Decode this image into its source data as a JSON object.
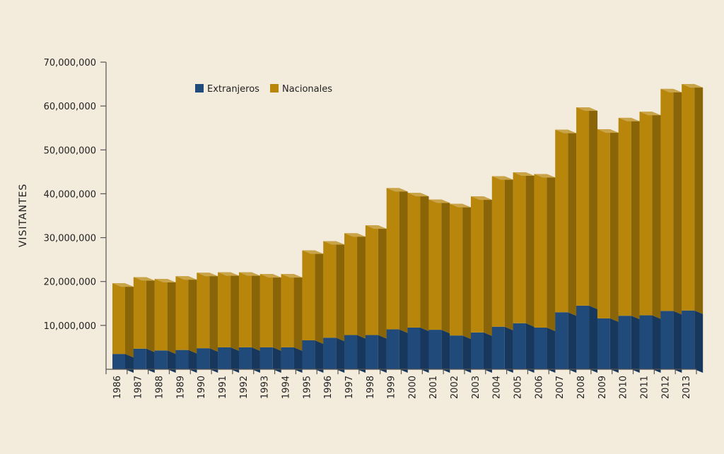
{
  "chart_data": {
    "type": "bar",
    "stacked": true,
    "categories": [
      "1986",
      "1987",
      "1988",
      "1989",
      "1990",
      "1991",
      "1992",
      "1993",
      "1994",
      "1995",
      "1996",
      "1997",
      "1998",
      "1999",
      "2000",
      "2001",
      "2002",
      "2003",
      "2004",
      "2005",
      "2006",
      "2007",
      "2008",
      "2009",
      "2010",
      "2011",
      "2012",
      "2013"
    ],
    "series": [
      {
        "name": "Extranjeros",
        "color": "#1f4a7a",
        "values": [
          3500000,
          4700000,
          4300000,
          4400000,
          4800000,
          5000000,
          5000000,
          5000000,
          5000000,
          6600000,
          7200000,
          7800000,
          7800000,
          9100000,
          9500000,
          9000000,
          7700000,
          8400000,
          9700000,
          10500000,
          9500000,
          13000000,
          14500000,
          11600000,
          12200000,
          12300000,
          13300000,
          13400000
        ]
      },
      {
        "name": "Nacionales",
        "color": "#b8860b",
        "values": [
          16100000,
          16300000,
          16300000,
          16800000,
          17200000,
          17100000,
          17100000,
          16700000,
          16700000,
          20500000,
          22000000,
          23200000,
          25000000,
          32200000,
          30700000,
          29700000,
          30000000,
          31000000,
          34300000,
          34400000,
          35000000,
          41600000,
          45200000,
          43100000,
          45100000,
          46400000,
          50600000,
          51600000
        ]
      }
    ],
    "xlabel": "",
    "ylabel": "VISITANTES",
    "ylim": [
      0,
      70000000
    ],
    "yticks": [
      "10,000,000",
      "20,000,000",
      "30,000,000",
      "40,000,000",
      "50,000,000",
      "60,000,000",
      "70,000,000"
    ],
    "ytick_values": [
      10000000,
      20000000,
      30000000,
      40000000,
      50000000,
      60000000,
      70000000
    ],
    "legend_position": "top-left",
    "grid": false
  }
}
